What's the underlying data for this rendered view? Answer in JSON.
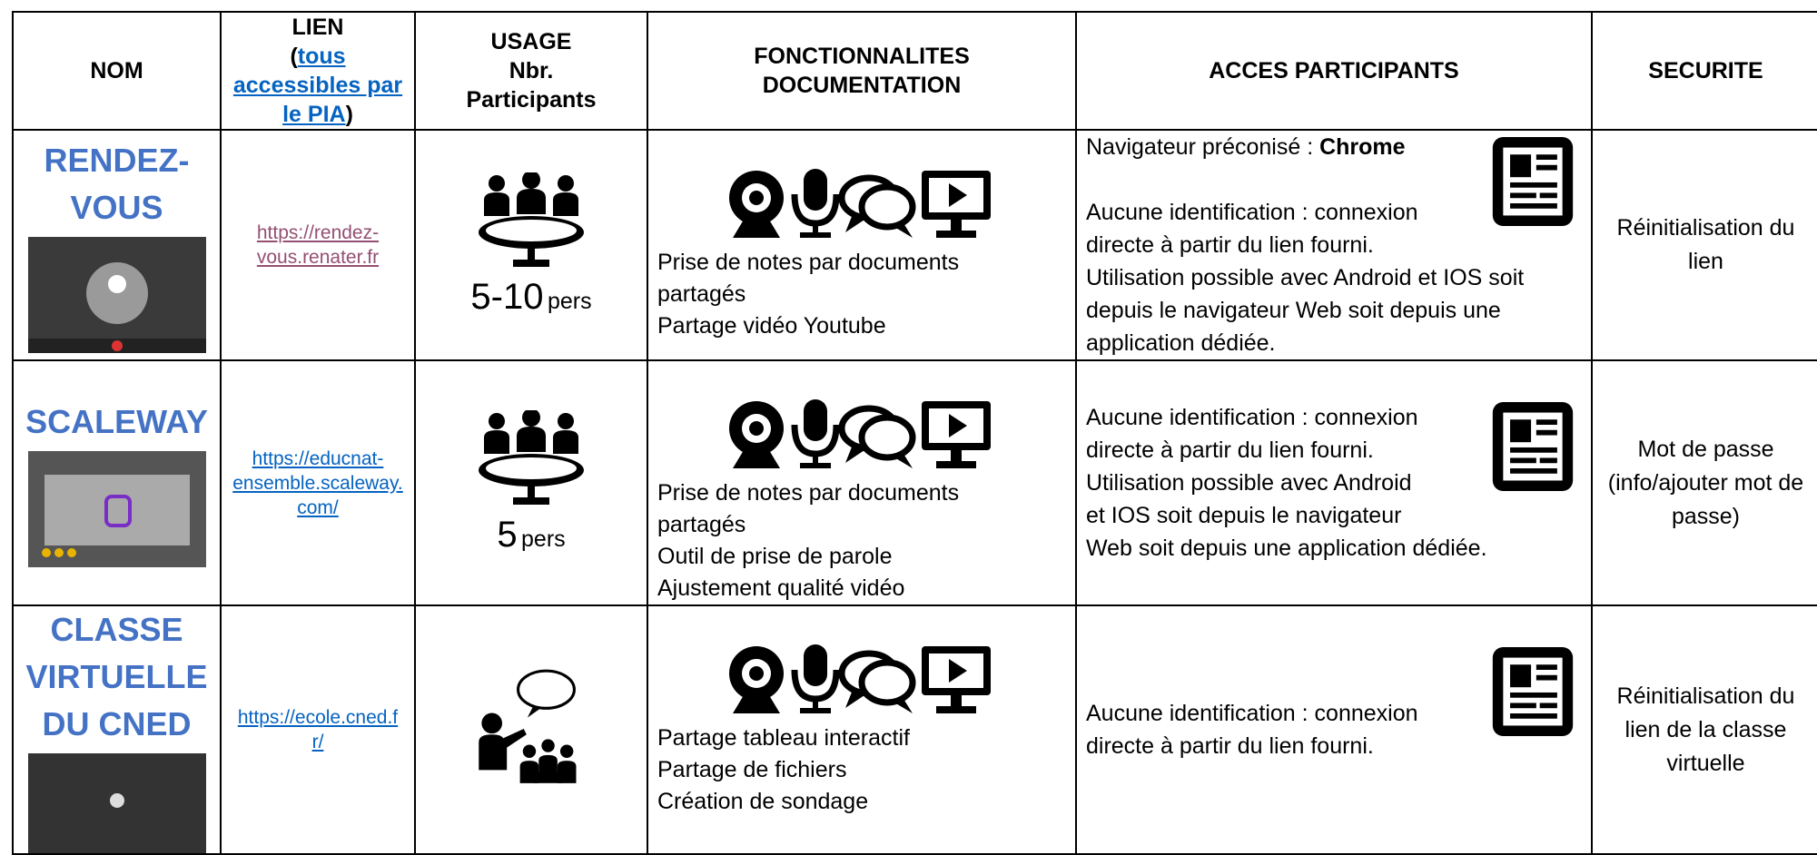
{
  "header": {
    "nom": "NOM",
    "lien": {
      "title": "LIEN",
      "prefix": "(",
      "link": "tous accessibles par le PIA",
      "suffix": ")"
    },
    "usage": [
      "USAGE",
      "Nbr.",
      "Participants"
    ],
    "fonctionnalites": [
      "FONCTIONNALITES",
      "DOCUMENTATION"
    ],
    "acces": "ACCES PARTICIPANTS",
    "securite": "SECURITE"
  },
  "rows": [
    {
      "name": [
        "RENDEZ-",
        "VOUS"
      ],
      "link": [
        "https://rendez-",
        "vous.renater.fr"
      ],
      "participants": "5-10",
      "unit": "pers",
      "features": [
        "Prise de notes par documents",
        "partagés",
        "Partage vidéo Youtube"
      ],
      "browser_label": "Navigateur préconisé :",
      "browser": "Chrome",
      "access": [
        "Aucune identification : connexion",
        "directe à partir du lien fourni.",
        "Utilisation possible avec Android et IOS soit",
        "depuis le navigateur Web soit depuis une",
        "application dédiée."
      ],
      "security": "Réinitialisation du lien"
    },
    {
      "name": [
        "SCALEWAY"
      ],
      "link": [
        "https://educnat-",
        "ensemble.scaleway.",
        "com/"
      ],
      "participants": "5",
      "unit": "pers",
      "features": [
        "Prise de notes par documents",
        "partagés",
        "Outil de prise de parole",
        "Ajustement qualité vidéo"
      ],
      "access": [
        "Aucune identification : connexion",
        "directe à partir du lien fourni.",
        "Utilisation possible avec Android",
        "et IOS soit depuis le navigateur",
        "Web soit depuis une application dédiée."
      ],
      "security": "Mot de passe (info/ajouter mot de passe)"
    },
    {
      "name": [
        "CLASSE",
        "VIRTUELLE",
        "DU CNED"
      ],
      "link": [
        "https://ecole.cned.f",
        "r/"
      ],
      "features": [
        "Partage tableau interactif",
        "Partage de fichiers",
        "Création de sondage"
      ],
      "access": [
        "Aucune identification : connexion",
        "directe à partir du lien fourni."
      ],
      "security": "Réinitialisation du lien de la classe virtuelle"
    }
  ]
}
